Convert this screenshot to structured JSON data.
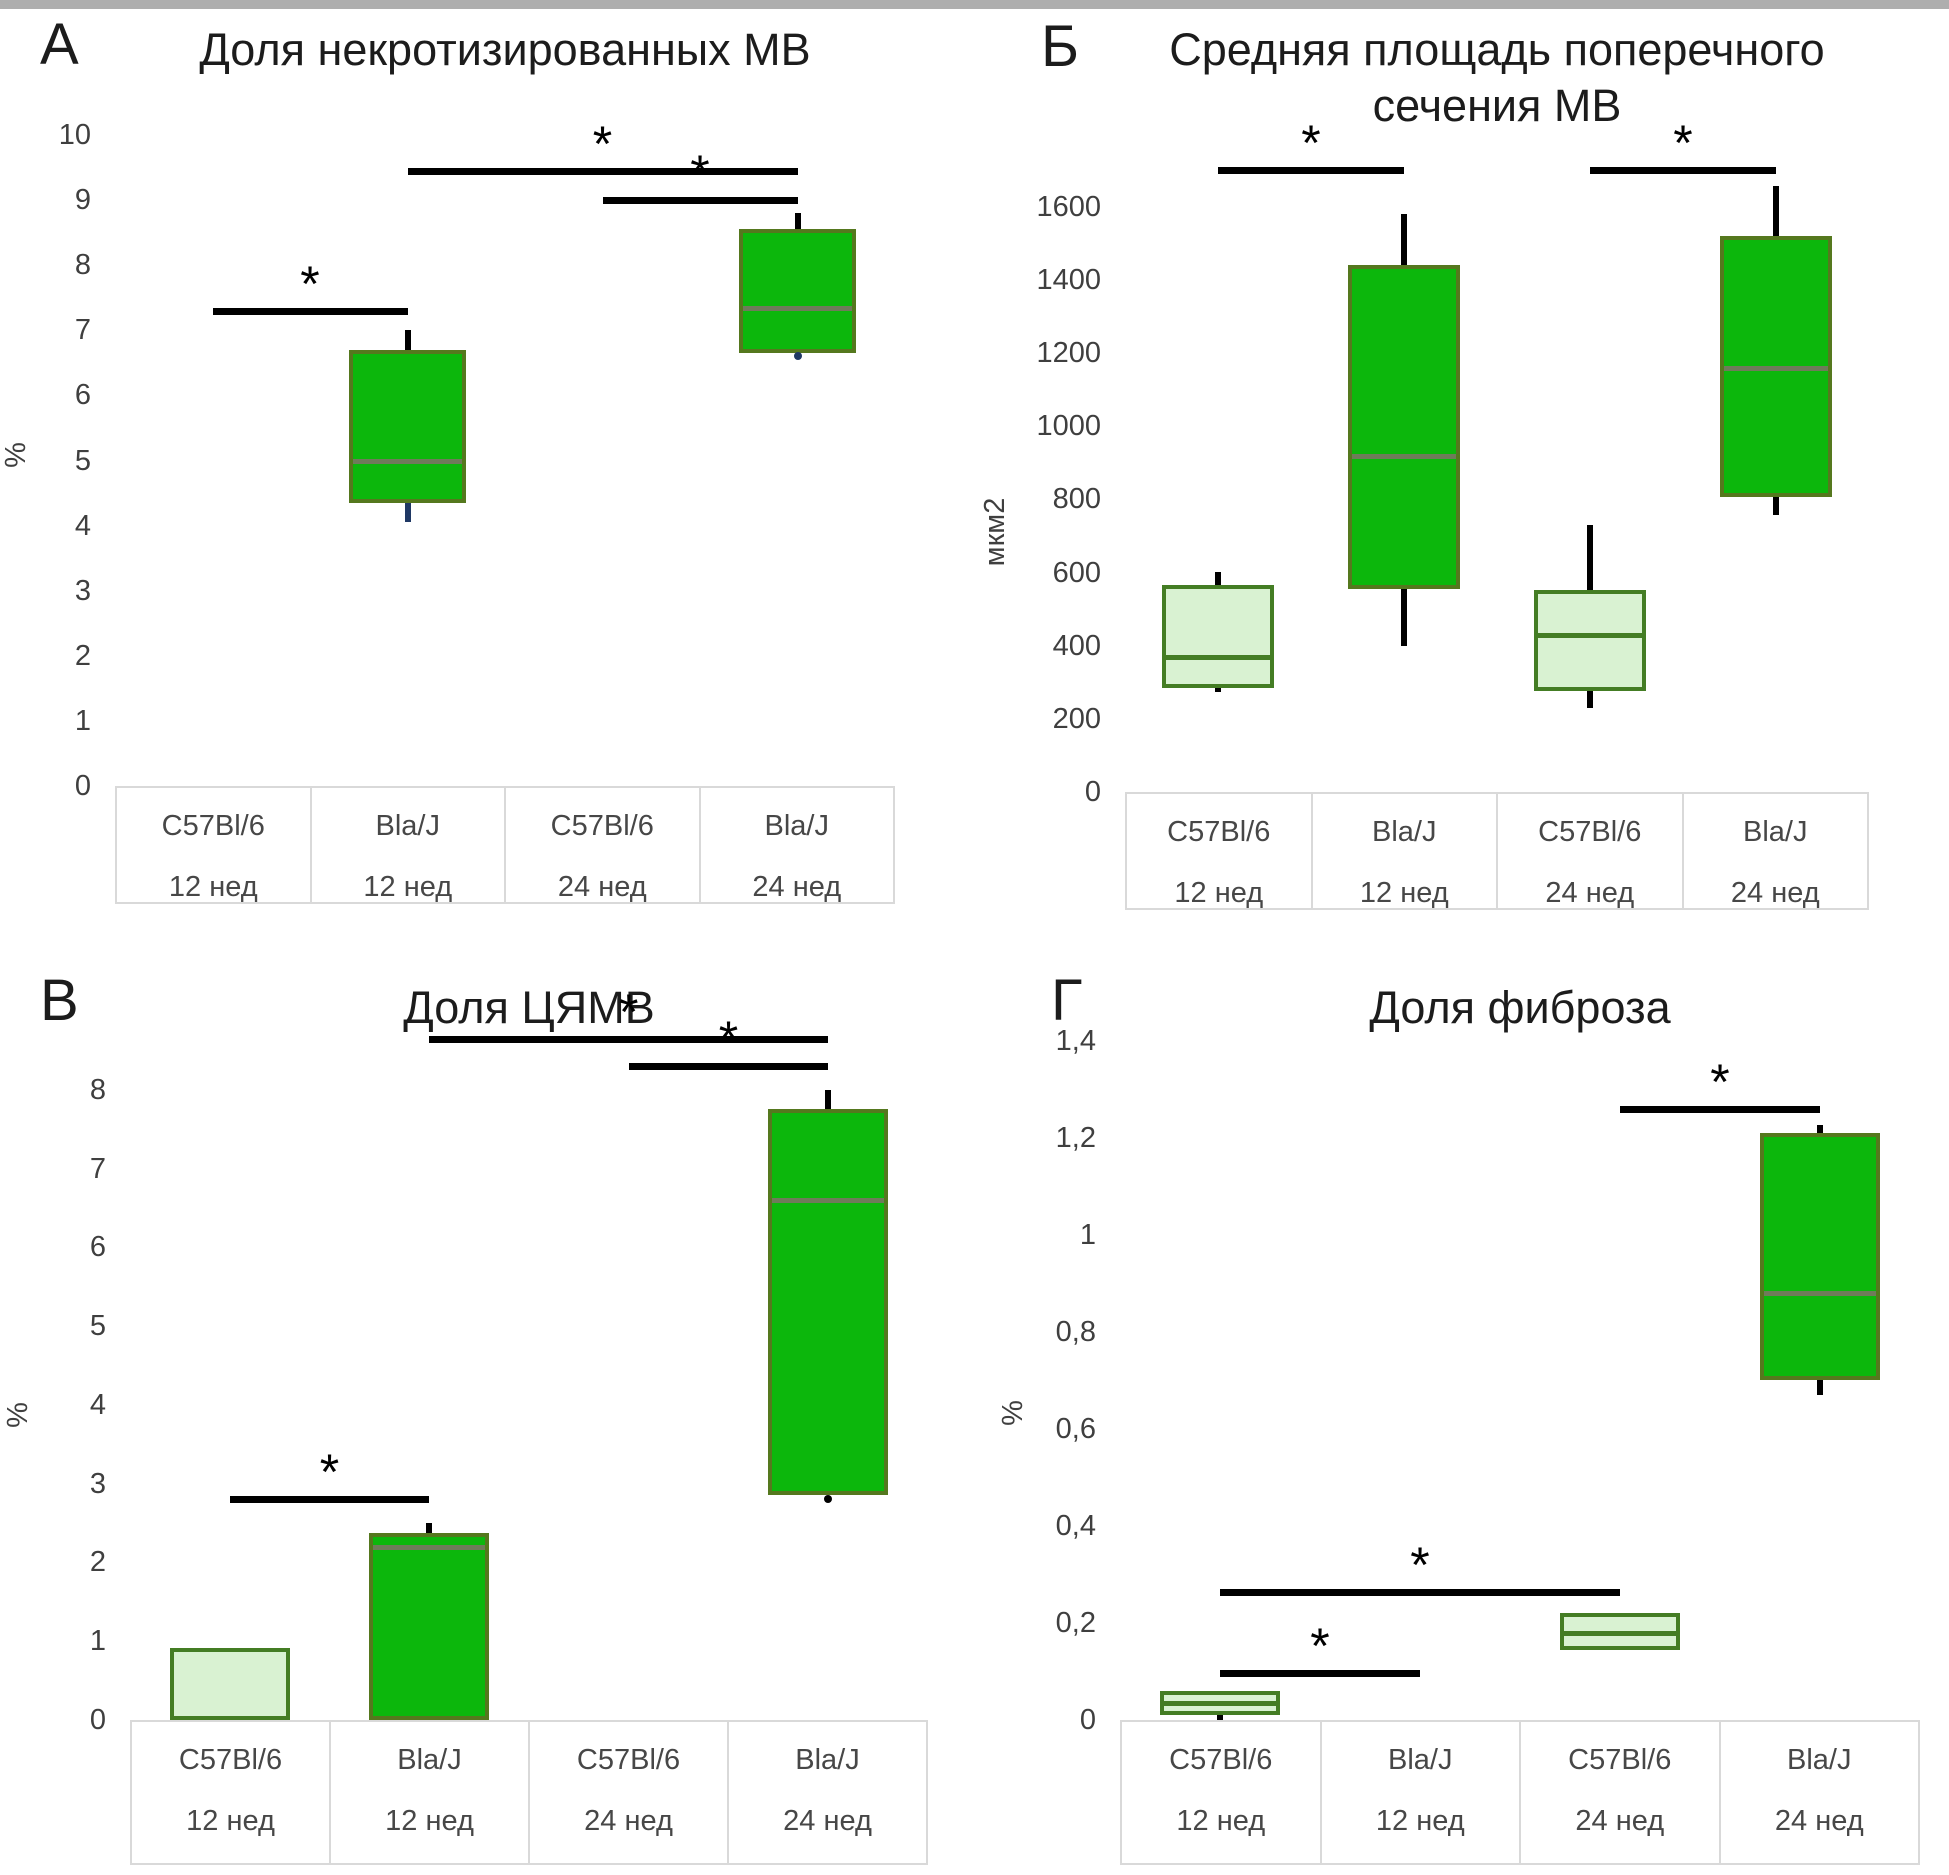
{
  "page": {
    "background": "#ffffff",
    "top_strip_color": "#aeaeae"
  },
  "box_styles": {
    "dark": {
      "fill": "#0cb70c",
      "border": "#55781e",
      "median": "#6f7b5a"
    },
    "light": {
      "fill": "#d9f2d2",
      "border": "#447d24",
      "median": "#447d24"
    }
  },
  "colors": {
    "whisker": "#000000",
    "navy": "#1f3864",
    "significance_bar": "#000000",
    "table_border": "#d9d9d9",
    "tick_text": "#3f3f3f",
    "label_text": "#474747",
    "title_text": "#1c1c1c"
  },
  "chart_data": [
    {
      "panel_letter": "А",
      "type": "box",
      "title": "Доля некротизированных МВ",
      "title_lines": [
        "Доля некротизированных МВ"
      ],
      "ylabel": "%",
      "ylim": [
        0,
        10.6
      ],
      "grid": false,
      "yticks": [
        {
          "value": 0,
          "label": "0"
        },
        {
          "value": 1,
          "label": "1"
        },
        {
          "value": 2,
          "label": "2"
        },
        {
          "value": 3,
          "label": "3"
        },
        {
          "value": 4,
          "label": "4"
        },
        {
          "value": 5,
          "label": "5"
        },
        {
          "value": 6,
          "label": "6"
        },
        {
          "value": 7,
          "label": "7"
        },
        {
          "value": 8,
          "label": "8"
        },
        {
          "value": 9,
          "label": "9"
        },
        {
          "value": 10,
          "label": "10"
        }
      ],
      "categories": [
        {
          "strain": "C57Bl/6",
          "age": "12 нед"
        },
        {
          "strain": "Bla/J",
          "age": "12 нед"
        },
        {
          "strain": "C57Bl/6",
          "age": "24 нед"
        },
        {
          "strain": "Bla/J",
          "age": "24 нед"
        }
      ],
      "boxes": [
        null,
        {
          "style": "dark",
          "q1": 4.35,
          "median": 5.0,
          "q3": 6.7,
          "whisker_low": 4.05,
          "whisker_high": 7.0,
          "whisker_low_color": "navy"
        },
        null,
        {
          "style": "dark",
          "q1": 6.65,
          "median": 7.35,
          "q3": 8.55,
          "whisker_high": 8.8,
          "outliers": [
            {
              "value": 6.6,
              "color": "navy"
            }
          ]
        }
      ],
      "significance": [
        {
          "from": 2,
          "to": 4,
          "y": 9.45,
          "label": "*"
        },
        {
          "from": 3,
          "to": 4,
          "y": 9.0,
          "label": "*"
        },
        {
          "from": 1,
          "to": 2,
          "y": 7.3,
          "label": "*"
        }
      ]
    },
    {
      "panel_letter": "Б",
      "type": "box",
      "title": "Средняя площадь поперечного сечения МВ",
      "title_lines": [
        "Средняя площадь поперечного",
        "сечения МВ"
      ],
      "ylabel": "мкм2",
      "ylim": [
        0,
        1780
      ],
      "grid": false,
      "yticks": [
        {
          "value": 0,
          "label": "0"
        },
        {
          "value": 200,
          "label": "200"
        },
        {
          "value": 400,
          "label": "400"
        },
        {
          "value": 600,
          "label": "600"
        },
        {
          "value": 800,
          "label": "800"
        },
        {
          "value": 1000,
          "label": "1000"
        },
        {
          "value": 1200,
          "label": "1200"
        },
        {
          "value": 1400,
          "label": "1400"
        },
        {
          "value": 1600,
          "label": "1600"
        }
      ],
      "categories": [
        {
          "strain": "C57Bl/6",
          "age": "12 нед"
        },
        {
          "strain": "Bla/J",
          "age": "12 нед"
        },
        {
          "strain": "C57Bl/6",
          "age": "24 нед"
        },
        {
          "strain": "Bla/J",
          "age": "24 нед"
        }
      ],
      "boxes": [
        {
          "style": "light",
          "q1": 285,
          "median": 368,
          "q3": 565,
          "whisker_low": 273,
          "whisker_high": 602
        },
        {
          "style": "dark",
          "q1": 555,
          "median": 920,
          "q3": 1440,
          "whisker_low": 398,
          "whisker_high": 1580
        },
        {
          "style": "light",
          "q1": 275,
          "median": 430,
          "q3": 552,
          "whisker_low": 230,
          "whisker_high": 730
        },
        {
          "style": "dark",
          "q1": 806,
          "median": 1160,
          "q3": 1520,
          "whisker_low": 757,
          "whisker_high": 1658
        }
      ],
      "significance": [
        {
          "from": 1,
          "to": 2,
          "y": 1700,
          "label": "*"
        },
        {
          "from": 3,
          "to": 4,
          "y": 1700,
          "label": "*"
        }
      ]
    },
    {
      "panel_letter": "В",
      "type": "box",
      "title": "Доля ЦЯМВ",
      "title_lines": [
        "Доля ЦЯМВ"
      ],
      "ylabel": "%",
      "ylim": [
        0,
        9.0
      ],
      "grid": false,
      "yticks": [
        {
          "value": 0,
          "label": "0"
        },
        {
          "value": 1,
          "label": "1"
        },
        {
          "value": 2,
          "label": "2"
        },
        {
          "value": 3,
          "label": "3"
        },
        {
          "value": 4,
          "label": "4"
        },
        {
          "value": 5,
          "label": "5"
        },
        {
          "value": 6,
          "label": "6"
        },
        {
          "value": 7,
          "label": "7"
        },
        {
          "value": 8,
          "label": "8"
        }
      ],
      "categories": [
        {
          "strain": "C57Bl/6",
          "age": "12 нед"
        },
        {
          "strain": "Bla/J",
          "age": "12 нед"
        },
        {
          "strain": "C57Bl/6",
          "age": "24 нед"
        },
        {
          "strain": "Bla/J",
          "age": "24 нед"
        }
      ],
      "boxes": [
        {
          "style": "light",
          "q1": 0,
          "median": 0.03,
          "q3": 0.91
        },
        {
          "style": "dark",
          "q1": 0,
          "median": 2.2,
          "q3": 2.38,
          "whisker_high": 2.5
        },
        null,
        {
          "style": "dark",
          "q1": 2.85,
          "median": 6.6,
          "q3": 7.75,
          "whisker_high": 8.0,
          "outliers": [
            {
              "value": 2.8,
              "color": "#000000"
            }
          ]
        }
      ],
      "significance": [
        {
          "from": 2,
          "to": 4,
          "y": 8.65,
          "label": "*"
        },
        {
          "from": 3,
          "to": 4,
          "y": 8.3,
          "label": "*"
        },
        {
          "from": 1,
          "to": 2,
          "y": 2.8,
          "label": "*"
        }
      ]
    },
    {
      "panel_letter": "Г",
      "type": "box",
      "title": "Доля фиброза",
      "title_lines": [
        "Доля фиброза"
      ],
      "ylabel": "%",
      "ylim": [
        0,
        1.47
      ],
      "grid": false,
      "yticks": [
        {
          "value": 0,
          "label": "0"
        },
        {
          "value": 0.2,
          "label": "0,2"
        },
        {
          "value": 0.4,
          "label": "0,4"
        },
        {
          "value": 0.6,
          "label": "0,6"
        },
        {
          "value": 0.8,
          "label": "0,8"
        },
        {
          "value": 1,
          "label": "1"
        },
        {
          "value": 1.2,
          "label": "1,2"
        },
        {
          "value": 1.4,
          "label": "1,4"
        }
      ],
      "categories": [
        {
          "strain": "C57Bl/6",
          "age": "12 нед"
        },
        {
          "strain": "Bla/J",
          "age": "12 нед"
        },
        {
          "strain": "C57Bl/6",
          "age": "24 нед"
        },
        {
          "strain": "Bla/J",
          "age": "24 нед"
        }
      ],
      "boxes": [
        {
          "style": "light",
          "q1": 0.01,
          "median": 0.035,
          "q3": 0.06,
          "whisker_low": 0.0
        },
        null,
        {
          "style": "light",
          "q1": 0.144,
          "median": 0.179,
          "q3": 0.22
        },
        {
          "style": "dark",
          "q1": 0.7,
          "median": 0.88,
          "q3": 1.21,
          "whisker_low": 0.67,
          "whisker_high": 1.227
        }
      ],
      "significance": [
        {
          "from": 3,
          "to": 4,
          "y": 1.26,
          "label": "*"
        },
        {
          "from": 1,
          "to": 3,
          "y": 0.264,
          "label": "*"
        },
        {
          "from": 1,
          "to": 2,
          "y": 0.097,
          "label": "*"
        }
      ]
    }
  ]
}
